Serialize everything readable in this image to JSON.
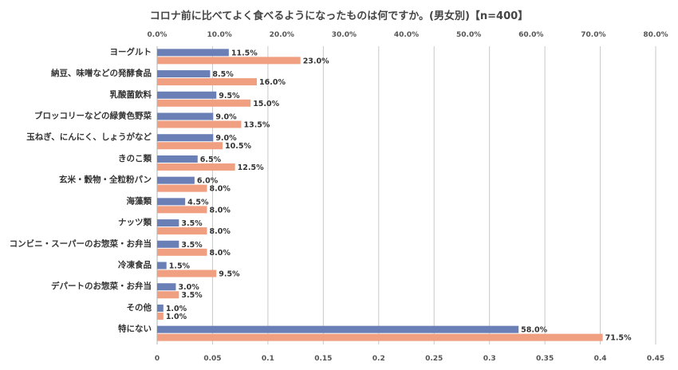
{
  "chart_data": {
    "type": "bar",
    "orientation": "horizontal",
    "title": "コロナ前に比べてよく食べるようになったものは何ですか。(男女別)【n=400】",
    "categories": [
      "ヨーグルト",
      "納豆、味噌などの発酵食品",
      "乳酸菌飲料",
      "ブロッコリーなどの緑黄色野菜",
      "玉ねぎ、にんにく、しょうがなど",
      "きのこ類",
      "玄米・穀物・全粒粉パン",
      "海藻類",
      "ナッツ類",
      "コンビニ・スーパーのお惣菜・お弁当",
      "冷凍食品",
      "デパートのお惣菜・お弁当",
      "その他",
      "特にない"
    ],
    "series": [
      {
        "color": "#6a7fb5",
        "values": [
          11.5,
          8.5,
          9.5,
          9.0,
          9.0,
          6.5,
          6.0,
          4.5,
          3.5,
          3.5,
          1.5,
          3.0,
          1.0,
          58.0
        ],
        "labels": [
          "11.5%",
          "8.5%",
          "9.5%",
          "9.0%",
          "9.0%",
          "6.5%",
          "6.0%",
          "4.5%",
          "3.5%",
          "3.5%",
          "1.5%",
          "3.0%",
          "1.0%",
          "58.0%"
        ]
      },
      {
        "color": "#f0a080",
        "values": [
          23.0,
          16.0,
          15.0,
          13.5,
          10.5,
          12.5,
          8.0,
          8.0,
          8.0,
          8.0,
          9.5,
          3.5,
          1.0,
          71.5
        ],
        "labels": [
          "23.0%",
          "16.0%",
          "15.0%",
          "13.5%",
          "10.5%",
          "12.5%",
          "8.0%",
          "8.0%",
          "8.0%",
          "8.0%",
          "9.5%",
          "3.5%",
          "1.0%",
          "71.5%"
        ]
      }
    ],
    "top_axis": {
      "ticks": [
        "0.0%",
        "10.0%",
        "20.0%",
        "30.0%",
        "40.0%",
        "50.0%",
        "60.0%",
        "70.0%",
        "80.0%"
      ],
      "range": [
        0,
        80
      ]
    },
    "bottom_axis": {
      "ticks": [
        "0",
        "0.05",
        "0.1",
        "0.15",
        "0.2",
        "0.25",
        "0.3",
        "0.35",
        "0.4",
        "0.45"
      ],
      "range": [
        0,
        0.45
      ]
    },
    "grid": true,
    "legend": "none"
  }
}
